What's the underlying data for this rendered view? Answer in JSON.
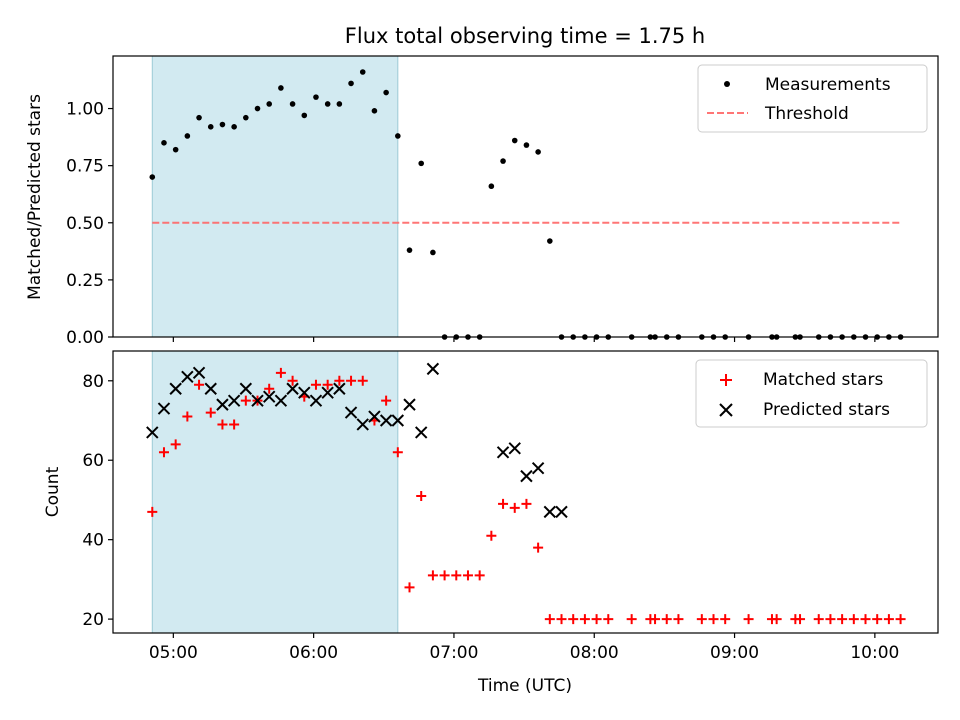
{
  "chart_data": {
    "type": "scatter",
    "title": "Flux total observing time = 1.75 h",
    "xlabel": "Time (UTC)",
    "x_tick_labels": [
      "05:00",
      "06:00",
      "07:00",
      "08:00",
      "09:00",
      "10:00"
    ],
    "x_ticks_hours": [
      5,
      6,
      7,
      8,
      9,
      10
    ],
    "xlim": [
      4.57,
      10.45
    ],
    "shaded_region": {
      "start": "04:51",
      "end": "06:36",
      "color": "#add8e6"
    },
    "panels": [
      {
        "ylabel": "Matched/Predicted stars",
        "ylim": [
          0,
          1.23
        ],
        "y_tick_labels": [
          "0.00",
          "0.25",
          "0.50",
          "0.75",
          "1.00"
        ],
        "y_ticks": [
          0,
          0.25,
          0.5,
          0.75,
          1.0
        ],
        "legend": {
          "position": "upper right",
          "entries": [
            "Measurements",
            "Threshold"
          ]
        },
        "series": [
          {
            "name": "Measurements",
            "marker": "dot",
            "color": "#000000",
            "x": [
              "04:51",
              "04:56",
              "05:01",
              "05:06",
              "05:11",
              "05:16",
              "05:21",
              "05:26",
              "05:31",
              "05:36",
              "05:41",
              "05:46",
              "05:51",
              "05:56",
              "06:01",
              "06:06",
              "06:11",
              "06:16",
              "06:21",
              "06:26",
              "06:31",
              "06:36",
              "06:41",
              "06:46",
              "06:51",
              "06:56",
              "07:01",
              "07:06",
              "07:11",
              "07:16",
              "07:21",
              "07:26",
              "07:31",
              "07:36",
              "07:41",
              "07:46",
              "07:51",
              "07:56",
              "08:01",
              "08:06",
              "08:16",
              "08:24",
              "08:26",
              "08:31",
              "08:36",
              "08:46",
              "08:51",
              "08:56",
              "09:06",
              "09:16",
              "09:18",
              "09:26",
              "09:28",
              "09:36",
              "09:41",
              "09:46",
              "09:51",
              "09:56",
              "10:01",
              "10:06",
              "10:11"
            ],
            "y": [
              0.7,
              0.85,
              0.82,
              0.88,
              0.96,
              0.92,
              0.93,
              0.92,
              0.96,
              1.0,
              1.02,
              1.09,
              1.02,
              0.97,
              1.05,
              1.02,
              1.02,
              1.11,
              1.16,
              0.99,
              1.07,
              0.88,
              0.38,
              0.76,
              0.37,
              0,
              0,
              0,
              0,
              0.66,
              0.77,
              0.86,
              0.84,
              0.81,
              0.42,
              0,
              0,
              0,
              0,
              0,
              0,
              0,
              0,
              0,
              0,
              0,
              0,
              0,
              0,
              0,
              0,
              0,
              0,
              0,
              0,
              0,
              0,
              0,
              0,
              0,
              0
            ]
          },
          {
            "name": "Threshold",
            "style": "dashed",
            "color": "#ff6666",
            "x": [
              "04:51",
              "10:11"
            ],
            "y": [
              0.5,
              0.5
            ]
          }
        ]
      },
      {
        "ylabel": "Count",
        "ylim": [
          16.5,
          87.5
        ],
        "y_tick_labels": [
          "20",
          "40",
          "60",
          "80"
        ],
        "y_ticks": [
          20,
          40,
          60,
          80
        ],
        "legend": {
          "position": "upper right",
          "entries": [
            "Matched stars",
            "Predicted stars"
          ]
        },
        "series": [
          {
            "name": "Matched stars",
            "marker": "plus",
            "color": "#ff0000",
            "x": [
              "04:51",
              "04:56",
              "05:01",
              "05:06",
              "05:11",
              "05:16",
              "05:21",
              "05:26",
              "05:31",
              "05:36",
              "05:41",
              "05:46",
              "05:51",
              "05:56",
              "06:01",
              "06:06",
              "06:11",
              "06:16",
              "06:21",
              "06:26",
              "06:31",
              "06:36",
              "06:41",
              "06:46",
              "06:51",
              "06:56",
              "07:01",
              "07:06",
              "07:11",
              "07:16",
              "07:21",
              "07:26",
              "07:31",
              "07:36",
              "07:41",
              "07:46",
              "07:51",
              "07:56",
              "08:01",
              "08:06",
              "08:16",
              "08:24",
              "08:26",
              "08:31",
              "08:36",
              "08:46",
              "08:51",
              "08:56",
              "09:06",
              "09:16",
              "09:18",
              "09:26",
              "09:28",
              "09:36",
              "09:41",
              "09:46",
              "09:51",
              "09:56",
              "10:01",
              "10:06",
              "10:11"
            ],
            "y": [
              47,
              62,
              64,
              71,
              79,
              72,
              69,
              69,
              75,
              75,
              78,
              82,
              80,
              76,
              79,
              79,
              80,
              80,
              80,
              70,
              75,
              62,
              28,
              51,
              31,
              31,
              31,
              31,
              31,
              41,
              49,
              48,
              49,
              38,
              20,
              20,
              20,
              20,
              20,
              20,
              20,
              20,
              20,
              20,
              20,
              20,
              20,
              20,
              20,
              20,
              20,
              20,
              20,
              20,
              20,
              20,
              20,
              20,
              20,
              20,
              20
            ]
          },
          {
            "name": "Predicted stars",
            "marker": "x",
            "color": "#000000",
            "x": [
              "04:51",
              "04:56",
              "05:01",
              "05:06",
              "05:11",
              "05:16",
              "05:21",
              "05:26",
              "05:31",
              "05:36",
              "05:41",
              "05:46",
              "05:51",
              "05:56",
              "06:01",
              "06:06",
              "06:11",
              "06:16",
              "06:21",
              "06:26",
              "06:31",
              "06:36",
              "06:41",
              "06:46",
              "06:51",
              "07:21",
              "07:26",
              "07:31",
              "07:36",
              "07:41",
              "07:46"
            ],
            "y": [
              67,
              73,
              78,
              81,
              82,
              78,
              74,
              75,
              78,
              75,
              76,
              75,
              78,
              77,
              75,
              77,
              78,
              72,
              69,
              71,
              70,
              70,
              74,
              67,
              83,
              62,
              63,
              56,
              58,
              47,
              47
            ]
          }
        ]
      }
    ]
  }
}
